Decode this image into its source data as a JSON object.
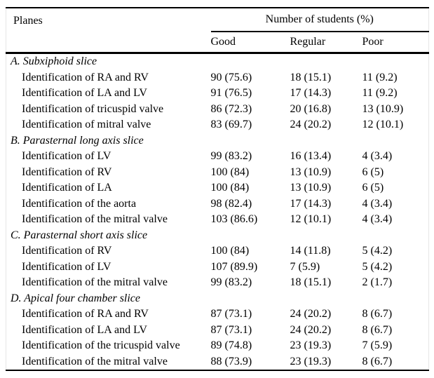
{
  "table": {
    "planes_header": "Planes",
    "group_header": "Number of students (%)",
    "columns": [
      "Good",
      "Regular",
      "Poor"
    ],
    "rows": [
      {
        "type": "section",
        "label": "A. Subxiphoid slice"
      },
      {
        "type": "item",
        "label": "Identification of RA and RV",
        "good": "90 (75.6)",
        "regular": "18 (15.1)",
        "poor": "11 (9.2)"
      },
      {
        "type": "item",
        "label": "Identification of LA and LV",
        "good": "91 (76.5)",
        "regular": "17 (14.3)",
        "poor": "11 (9.2)"
      },
      {
        "type": "item",
        "label": "Identification of tricuspid valve",
        "good": "86 (72.3)",
        "regular": "20 (16.8)",
        "poor": "13 (10.9)"
      },
      {
        "type": "item",
        "label": "Identification of mitral valve",
        "good": "83 (69.7)",
        "regular": "24 (20.2)",
        "poor": "12 (10.1)"
      },
      {
        "type": "section",
        "label": "B. Parasternal long axis slice"
      },
      {
        "type": "item",
        "label": "Identification of LV",
        "good": "99 (83.2)",
        "regular": "16 (13.4)",
        "poor": "4 (3.4)"
      },
      {
        "type": "item",
        "label": "Identification of RV",
        "good": "100 (84)",
        "regular": "13 (10.9)",
        "poor": "6 (5)"
      },
      {
        "type": "item",
        "label": "Identification of LA",
        "good": "100 (84)",
        "regular": "13 (10.9)",
        "poor": "6 (5)"
      },
      {
        "type": "item",
        "label": "Identification of the aorta",
        "good": "98 (82.4)",
        "regular": "17 (14.3)",
        "poor": "4 (3.4)"
      },
      {
        "type": "item",
        "label": "Identification of the mitral valve",
        "good": "103 (86.6)",
        "regular": "12 (10.1)",
        "poor": "4 (3.4)"
      },
      {
        "type": "section",
        "label": "C. Parasternal short axis slice"
      },
      {
        "type": "item",
        "label": "Identification of RV",
        "good": "100 (84)",
        "regular": "14 (11.8)",
        "poor": "5 (4.2)"
      },
      {
        "type": "item",
        "label": "Identification of LV",
        "good": "107 (89.9)",
        "regular": "7 (5.9)",
        "poor": "5 (4.2)"
      },
      {
        "type": "item",
        "label": "Identification of the mitral valve",
        "good": "99 (83.2)",
        "regular": "18 (15.1)",
        "poor": "2 (1.7)"
      },
      {
        "type": "section",
        "label": "D. Apical four chamber slice"
      },
      {
        "type": "item",
        "label": "Identification of RA and RV",
        "good": "87 (73.1)",
        "regular": "24 (20.2)",
        "poor": "8 (6.7)"
      },
      {
        "type": "item",
        "label": "Identification of LA and LV",
        "good": "87 (73.1)",
        "regular": "24 (20.2)",
        "poor": "8 (6.7)"
      },
      {
        "type": "item",
        "label": "Identification of the tricuspid valve",
        "good": "89 (74.8)",
        "regular": "23 (19.3)",
        "poor": "7 (5.9)"
      },
      {
        "type": "item",
        "label": "Identification of the mitral valve",
        "good": "88 (73.9)",
        "regular": "23 (19.3)",
        "poor": "8 (6.7)"
      }
    ]
  }
}
